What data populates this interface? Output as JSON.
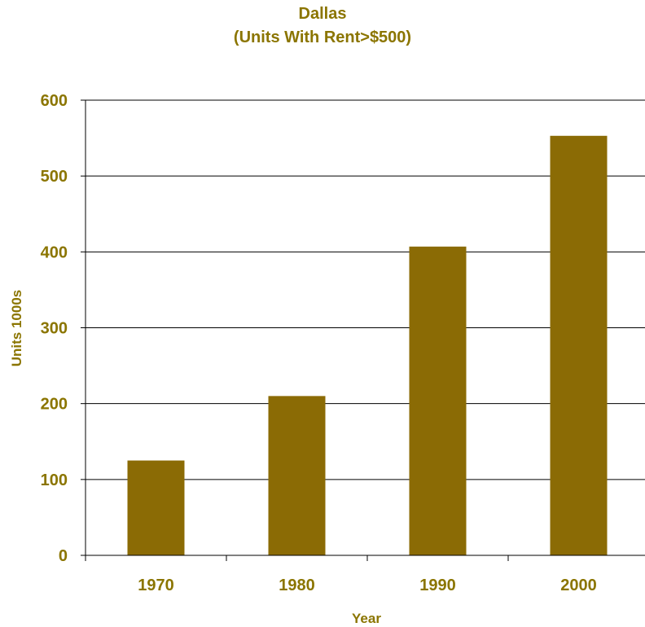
{
  "chart_data": {
    "type": "bar",
    "title": "Dallas",
    "subtitle": "(Units With Rent>$500)",
    "xlabel": "Year",
    "ylabel": "Units 1000s",
    "categories": [
      "1970",
      "1980",
      "1990",
      "2000"
    ],
    "values": [
      125,
      210,
      407,
      553
    ],
    "ylim": [
      0,
      600
    ],
    "yticks": [
      0,
      100,
      200,
      300,
      400,
      500,
      600
    ],
    "grid": true,
    "legend": "none"
  },
  "colors": {
    "text": "#8b7500",
    "bar": "#8b6b05",
    "axis": "#000000"
  }
}
